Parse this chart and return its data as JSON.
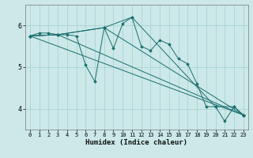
{
  "xlabel": "Humidex (Indice chaleur)",
  "ylabel": "",
  "bg_color": "#cce8e8",
  "line_color": "#1a6e6e",
  "grid_color": "#aad4d4",
  "xlim": [
    -0.5,
    23.5
  ],
  "ylim": [
    3.5,
    6.5
  ],
  "yticks": [
    4,
    5,
    6
  ],
  "xticks": [
    0,
    1,
    2,
    3,
    4,
    5,
    6,
    7,
    8,
    9,
    10,
    11,
    12,
    13,
    14,
    15,
    16,
    17,
    18,
    19,
    20,
    21,
    22,
    23
  ],
  "series": [
    {
      "x": [
        0,
        1,
        2,
        3,
        4,
        5,
        6,
        7,
        8,
        9,
        10,
        11,
        12,
        13,
        14,
        15,
        16,
        17,
        18,
        19,
        20,
        21,
        22,
        23
      ],
      "y": [
        5.75,
        5.82,
        5.82,
        5.78,
        5.78,
        5.75,
        5.05,
        4.65,
        5.95,
        5.45,
        6.05,
        6.2,
        5.5,
        5.4,
        5.65,
        5.55,
        5.2,
        5.08,
        4.6,
        4.05,
        4.05,
        3.7,
        4.05,
        3.85
      ]
    },
    {
      "x": [
        0,
        3,
        8,
        11,
        20,
        22,
        23
      ],
      "y": [
        5.75,
        5.78,
        5.95,
        6.2,
        4.05,
        4.05,
        3.85
      ]
    },
    {
      "x": [
        0,
        3,
        8,
        23
      ],
      "y": [
        5.75,
        5.78,
        5.95,
        3.85
      ]
    },
    {
      "x": [
        0,
        3,
        23
      ],
      "y": [
        5.75,
        5.78,
        3.85
      ]
    },
    {
      "x": [
        0,
        23
      ],
      "y": [
        5.75,
        3.85
      ]
    }
  ]
}
